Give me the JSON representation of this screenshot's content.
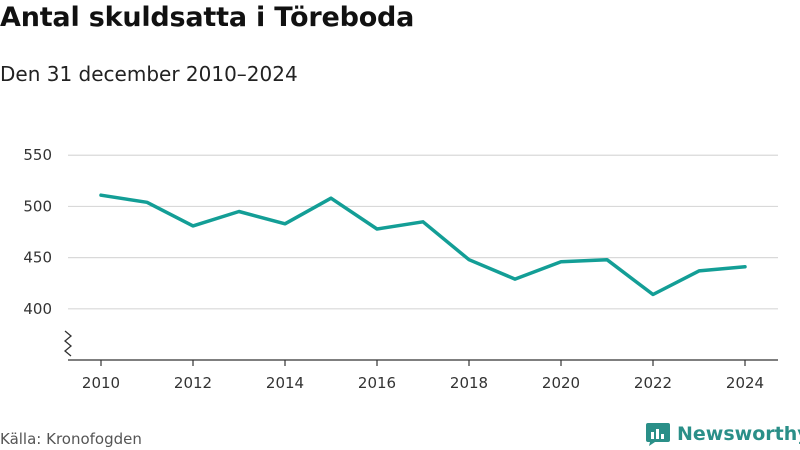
{
  "header": {
    "title": "Antal skuldsatta i Töreboda",
    "subtitle": "Den 31 december 2010–2024"
  },
  "footer": {
    "source": "Källa: Kronofogden",
    "brand": "Newsworthy"
  },
  "colors": {
    "line": "#139e96",
    "grid": "#d9d9d9",
    "axis": "#333333",
    "brand": "#2a8f88"
  },
  "chart_data": {
    "type": "line",
    "title": "Antal skuldsatta i Töreboda",
    "subtitle": "Den 31 december 2010–2024",
    "xlabel": "",
    "ylabel": "",
    "x": [
      2010,
      2011,
      2012,
      2013,
      2014,
      2015,
      2016,
      2017,
      2018,
      2019,
      2020,
      2021,
      2022,
      2023,
      2024
    ],
    "series": [
      {
        "name": "Antal skuldsatta",
        "values": [
          511,
          504,
          481,
          495,
          483,
          508,
          478,
          485,
          448,
          429,
          446,
          448,
          414,
          437,
          441
        ]
      }
    ],
    "x_ticks": [
      "2010",
      "2012",
      "2014",
      "2016",
      "2018",
      "2020",
      "2022",
      "2024"
    ],
    "y_ticks": [
      "400",
      "450",
      "500",
      "550"
    ],
    "ylim": [
      350,
      560
    ],
    "xlim": [
      2010,
      2024
    ],
    "y_axis_break": true,
    "grid": true,
    "legend": "none"
  }
}
